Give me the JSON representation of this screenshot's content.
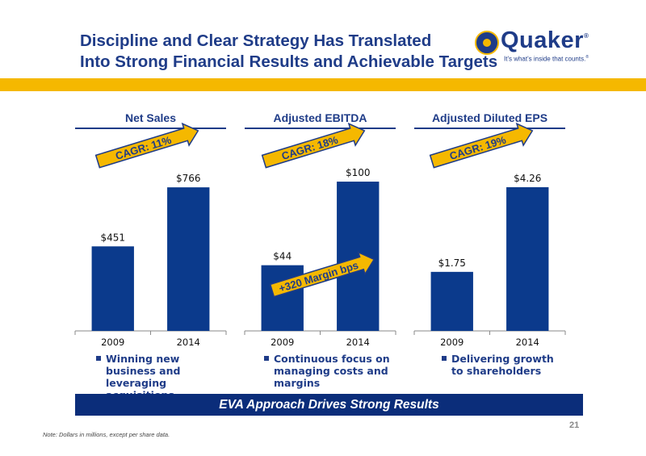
{
  "header": {
    "title_line1": "Discipline and Clear Strategy Has Translated",
    "title_line2": "Into Strong Financial Results and Achievable Targets"
  },
  "logo": {
    "wordmark": "Quaker",
    "registered": "®",
    "tagline": "It's what's inside that counts.",
    "tagline_mark": "®"
  },
  "colors": {
    "navy": "#1f3c88",
    "bar": "#0b3a8c",
    "accent_yellow": "#f5b800"
  },
  "chart_data": [
    {
      "type": "bar",
      "title": "Net Sales",
      "categories": [
        "2009",
        "2014"
      ],
      "values": [
        451,
        766
      ],
      "data_labels": [
        "$451",
        "$766"
      ],
      "annotation": "CAGR: 11%",
      "bullet": "Winning new business and leveraging acquisitions",
      "ylim": [
        0,
        900
      ]
    },
    {
      "type": "bar",
      "title": "Adjusted EBITDA",
      "categories": [
        "2009",
        "2014"
      ],
      "values": [
        44,
        100
      ],
      "data_labels": [
        "$44",
        "$100"
      ],
      "annotation": "CAGR: 18%",
      "annotation2": "+320 Margin bps",
      "bullet": "Continuous focus on managing costs and margins",
      "ylim": [
        0,
        113
      ]
    },
    {
      "type": "bar",
      "title": "Adjusted Diluted EPS",
      "categories": [
        "2009",
        "2014"
      ],
      "values": [
        1.75,
        4.26
      ],
      "data_labels": [
        "$1.75",
        "$4.26"
      ],
      "annotation": "CAGR: 19%",
      "bullet": "Delivering growth to shareholders",
      "ylim": [
        0,
        5.0
      ]
    }
  ],
  "footer": {
    "eva_banner": "EVA Approach Drives Strong Results",
    "note": "Note: Dollars in millions, except per share data.",
    "page_number": "21"
  }
}
